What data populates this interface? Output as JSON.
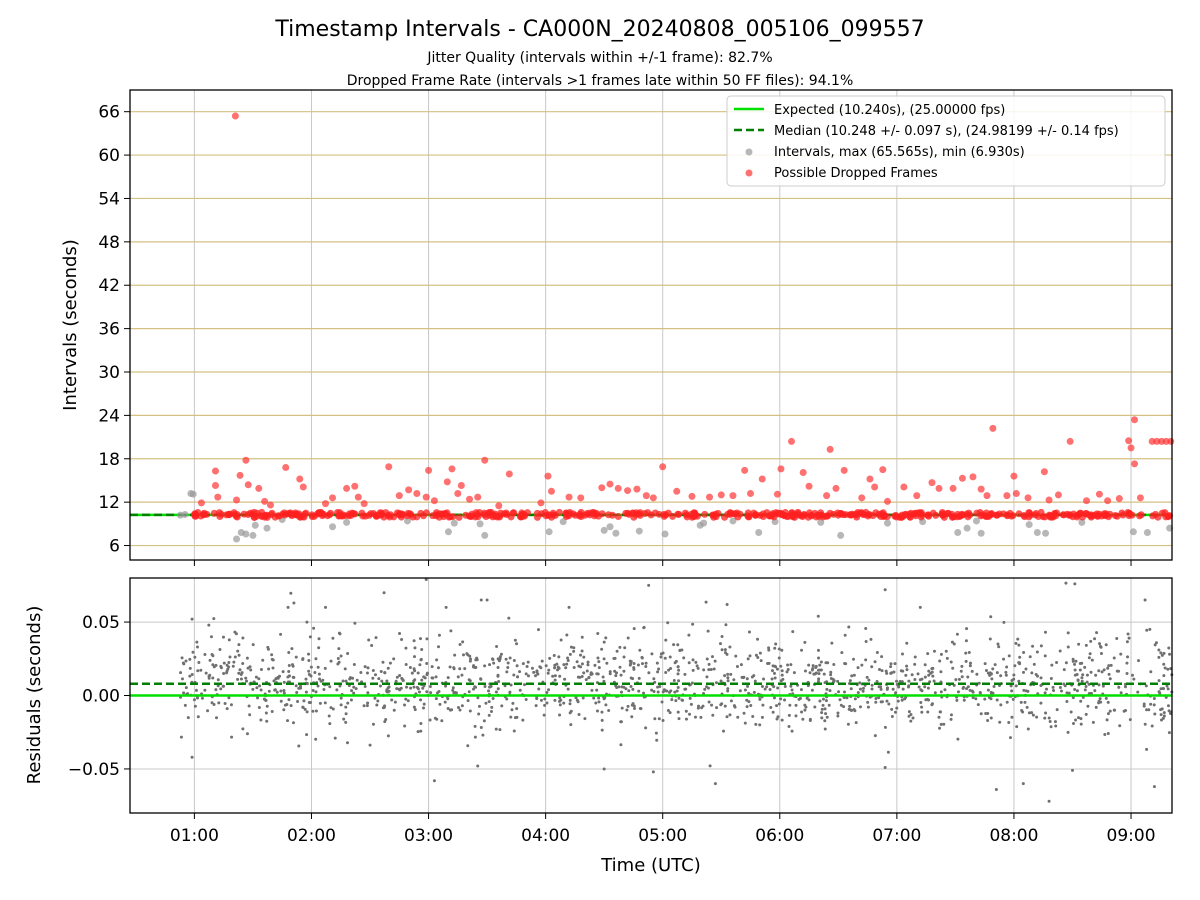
{
  "chart_data": [
    {
      "id": "intervals",
      "type": "scatter",
      "title": "Timestamp Intervals - CA000N_20240808_005106_099557",
      "subtitles": [
        "Jitter Quality (intervals within +/-1 frame): 82.7%",
        "Dropped Frame Rate (intervals >1 frames late within 50 FF files): 94.1%"
      ],
      "ylabel": "Intervals (seconds)",
      "xlim": [
        0.45,
        9.35
      ],
      "ylim": [
        4,
        69
      ],
      "yticks": [
        6,
        12,
        18,
        24,
        30,
        36,
        42,
        48,
        54,
        60,
        66
      ],
      "xticks": [
        1,
        2,
        3,
        4,
        5,
        6,
        7,
        8,
        9
      ],
      "hgrid_color": "#d4c080",
      "vgrid_color": "#c8c8c8",
      "expected_value": 10.24,
      "median_value": 10.248,
      "series": [
        {
          "name": "Expected (10.240s), (25.00000 fps)",
          "kind": "line",
          "color": "#00e000",
          "style": "solid"
        },
        {
          "name": "Median (10.248 +/- 0.097 s), (24.98199 +/- 0.14 fps)",
          "kind": "line",
          "color": "#007f00",
          "style": "dashed"
        },
        {
          "name": "Intervals, max (65.565s), min (6.930s)",
          "kind": "scatter",
          "color": "#999999",
          "max": 65.565,
          "min": 6.93
        },
        {
          "name": "Possible Dropped Frames",
          "kind": "scatter",
          "color": "#ff3333"
        }
      ],
      "gray_points": [
        [
          0.88,
          10.2
        ],
        [
          0.92,
          10.3
        ],
        [
          0.97,
          13.2
        ],
        [
          0.99,
          13.1
        ],
        [
          1.36,
          6.9
        ],
        [
          1.4,
          7.8
        ],
        [
          1.44,
          7.6
        ],
        [
          1.5,
          7.4
        ],
        [
          1.52,
          8.8
        ],
        [
          1.62,
          8.4
        ],
        [
          1.75,
          9.6
        ],
        [
          2.18,
          8.6
        ],
        [
          2.3,
          9.2
        ],
        [
          2.82,
          9.4
        ],
        [
          3.17,
          7.9
        ],
        [
          3.22,
          9.1
        ],
        [
          3.44,
          9.0
        ],
        [
          3.48,
          7.4
        ],
        [
          4.03,
          7.9
        ],
        [
          4.15,
          9.3
        ],
        [
          4.5,
          8.1
        ],
        [
          4.55,
          8.6
        ],
        [
          4.6,
          7.7
        ],
        [
          4.8,
          8.0
        ],
        [
          5.02,
          7.6
        ],
        [
          5.32,
          8.8
        ],
        [
          5.35,
          9.1
        ],
        [
          5.6,
          9.4
        ],
        [
          5.82,
          7.8
        ],
        [
          5.96,
          9.3
        ],
        [
          6.35,
          9.2
        ],
        [
          6.52,
          7.4
        ],
        [
          6.92,
          9.1
        ],
        [
          7.22,
          9.3
        ],
        [
          7.52,
          7.8
        ],
        [
          7.6,
          8.4
        ],
        [
          7.72,
          7.7
        ],
        [
          7.68,
          9.4
        ],
        [
          8.13,
          8.9
        ],
        [
          8.2,
          7.8
        ],
        [
          8.27,
          7.7
        ],
        [
          8.58,
          9.2
        ],
        [
          9.02,
          7.9
        ],
        [
          9.14,
          7.8
        ],
        [
          9.33,
          8.4
        ]
      ],
      "red_points": [
        [
          1.35,
          65.4
        ],
        [
          1.06,
          11.9
        ],
        [
          1.18,
          16.3
        ],
        [
          1.18,
          14.3
        ],
        [
          1.2,
          12.7
        ],
        [
          1.36,
          12.3
        ],
        [
          1.39,
          15.7
        ],
        [
          1.44,
          17.8
        ],
        [
          1.46,
          14.4
        ],
        [
          1.55,
          13.9
        ],
        [
          1.6,
          12.1
        ],
        [
          1.65,
          11.6
        ],
        [
          1.78,
          16.8
        ],
        [
          1.9,
          15.2
        ],
        [
          1.93,
          14.1
        ],
        [
          2.12,
          11.8
        ],
        [
          2.18,
          12.6
        ],
        [
          2.3,
          13.9
        ],
        [
          2.37,
          14.2
        ],
        [
          2.4,
          12.7
        ],
        [
          2.45,
          11.8
        ],
        [
          2.66,
          16.9
        ],
        [
          2.75,
          12.9
        ],
        [
          2.83,
          13.7
        ],
        [
          2.9,
          13.2
        ],
        [
          2.98,
          12.7
        ],
        [
          3.0,
          16.4
        ],
        [
          3.05,
          12.2
        ],
        [
          3.16,
          14.8
        ],
        [
          3.2,
          16.6
        ],
        [
          3.25,
          13.2
        ],
        [
          3.28,
          14.3
        ],
        [
          3.35,
          12.4
        ],
        [
          3.42,
          12.7
        ],
        [
          3.48,
          17.8
        ],
        [
          3.6,
          11.5
        ],
        [
          3.69,
          15.9
        ],
        [
          3.96,
          11.9
        ],
        [
          4.02,
          15.6
        ],
        [
          4.05,
          13.5
        ],
        [
          4.2,
          12.7
        ],
        [
          4.3,
          12.6
        ],
        [
          4.48,
          14.0
        ],
        [
          4.55,
          14.5
        ],
        [
          4.62,
          13.9
        ],
        [
          4.7,
          13.6
        ],
        [
          4.78,
          13.8
        ],
        [
          4.86,
          12.9
        ],
        [
          4.92,
          12.6
        ],
        [
          5.0,
          16.9
        ],
        [
          5.12,
          13.5
        ],
        [
          5.25,
          12.8
        ],
        [
          5.4,
          12.7
        ],
        [
          5.5,
          13.0
        ],
        [
          5.6,
          12.9
        ],
        [
          5.7,
          16.4
        ],
        [
          5.75,
          13.2
        ],
        [
          5.85,
          15.2
        ],
        [
          5.98,
          13.1
        ],
        [
          6.01,
          16.6
        ],
        [
          6.1,
          20.4
        ],
        [
          6.2,
          16.1
        ],
        [
          6.25,
          14.2
        ],
        [
          6.4,
          12.9
        ],
        [
          6.43,
          19.3
        ],
        [
          6.48,
          13.9
        ],
        [
          6.55,
          16.4
        ],
        [
          6.7,
          12.6
        ],
        [
          6.77,
          15.2
        ],
        [
          6.81,
          14.1
        ],
        [
          6.88,
          16.5
        ],
        [
          6.92,
          12.1
        ],
        [
          7.06,
          14.1
        ],
        [
          7.17,
          12.9
        ],
        [
          7.3,
          14.7
        ],
        [
          7.36,
          13.9
        ],
        [
          7.48,
          13.9
        ],
        [
          7.56,
          15.3
        ],
        [
          7.65,
          15.5
        ],
        [
          7.72,
          13.8
        ],
        [
          7.77,
          12.9
        ],
        [
          7.82,
          22.2
        ],
        [
          7.94,
          12.9
        ],
        [
          8.0,
          15.6
        ],
        [
          8.02,
          13.2
        ],
        [
          8.12,
          12.6
        ],
        [
          8.26,
          16.2
        ],
        [
          8.3,
          12.3
        ],
        [
          8.38,
          13.0
        ],
        [
          8.48,
          20.4
        ],
        [
          8.62,
          12.2
        ],
        [
          8.73,
          13.1
        ],
        [
          8.8,
          12.2
        ],
        [
          8.9,
          12.5
        ],
        [
          8.98,
          20.5
        ],
        [
          9.0,
          19.5
        ],
        [
          9.03,
          17.3
        ],
        [
          9.03,
          23.4
        ],
        [
          9.08,
          12.6
        ],
        [
          9.18,
          20.4
        ],
        [
          9.22,
          20.4
        ],
        [
          9.26,
          20.4
        ],
        [
          9.3,
          20.4
        ],
        [
          9.34,
          20.4
        ]
      ]
    },
    {
      "id": "residuals",
      "type": "scatter",
      "ylabel": "Residuals (seconds)",
      "xlabel": "Time (UTC)",
      "xlim": [
        0.45,
        9.35
      ],
      "ylim": [
        -0.08,
        0.08
      ],
      "yticks": [
        -0.05,
        0.0,
        0.05
      ],
      "ytick_labels": [
        "−0.05",
        "0.00",
        "0.05"
      ],
      "xticks": [
        1,
        2,
        3,
        4,
        5,
        6,
        7,
        8,
        9
      ],
      "xtick_labels": [
        "01:00",
        "02:00",
        "03:00",
        "04:00",
        "05:00",
        "06:00",
        "07:00",
        "08:00",
        "09:00"
      ],
      "expected_value": 0.0,
      "median_value": 0.008,
      "point_color": "#707070",
      "n_points": 1600,
      "x_range": [
        0.88,
        9.35
      ],
      "center": 0.008,
      "spread": 0.016,
      "outliers": [
        [
          0.98,
          0.052
        ],
        [
          0.98,
          -0.042
        ],
        [
          1.8,
          0.06
        ],
        [
          1.85,
          0.063
        ],
        [
          2.12,
          0.06
        ],
        [
          2.62,
          0.07
        ],
        [
          2.98,
          0.079
        ],
        [
          3.05,
          -0.058
        ],
        [
          3.15,
          0.06
        ],
        [
          3.42,
          -0.048
        ],
        [
          3.45,
          0.065
        ],
        [
          3.5,
          0.065
        ],
        [
          4.2,
          0.06
        ],
        [
          4.5,
          -0.05
        ],
        [
          4.88,
          0.075
        ],
        [
          4.92,
          -0.052
        ],
        [
          5.45,
          -0.06
        ],
        [
          5.55,
          0.062
        ],
        [
          6.9,
          0.072
        ],
        [
          6.9,
          -0.049
        ],
        [
          7.2,
          0.06
        ],
        [
          7.85,
          -0.064
        ],
        [
          8.08,
          -0.06
        ],
        [
          8.3,
          -0.072
        ],
        [
          8.52,
          0.076
        ],
        [
          8.5,
          -0.051
        ],
        [
          9.12,
          0.065
        ],
        [
          9.2,
          -0.062
        ]
      ]
    }
  ]
}
